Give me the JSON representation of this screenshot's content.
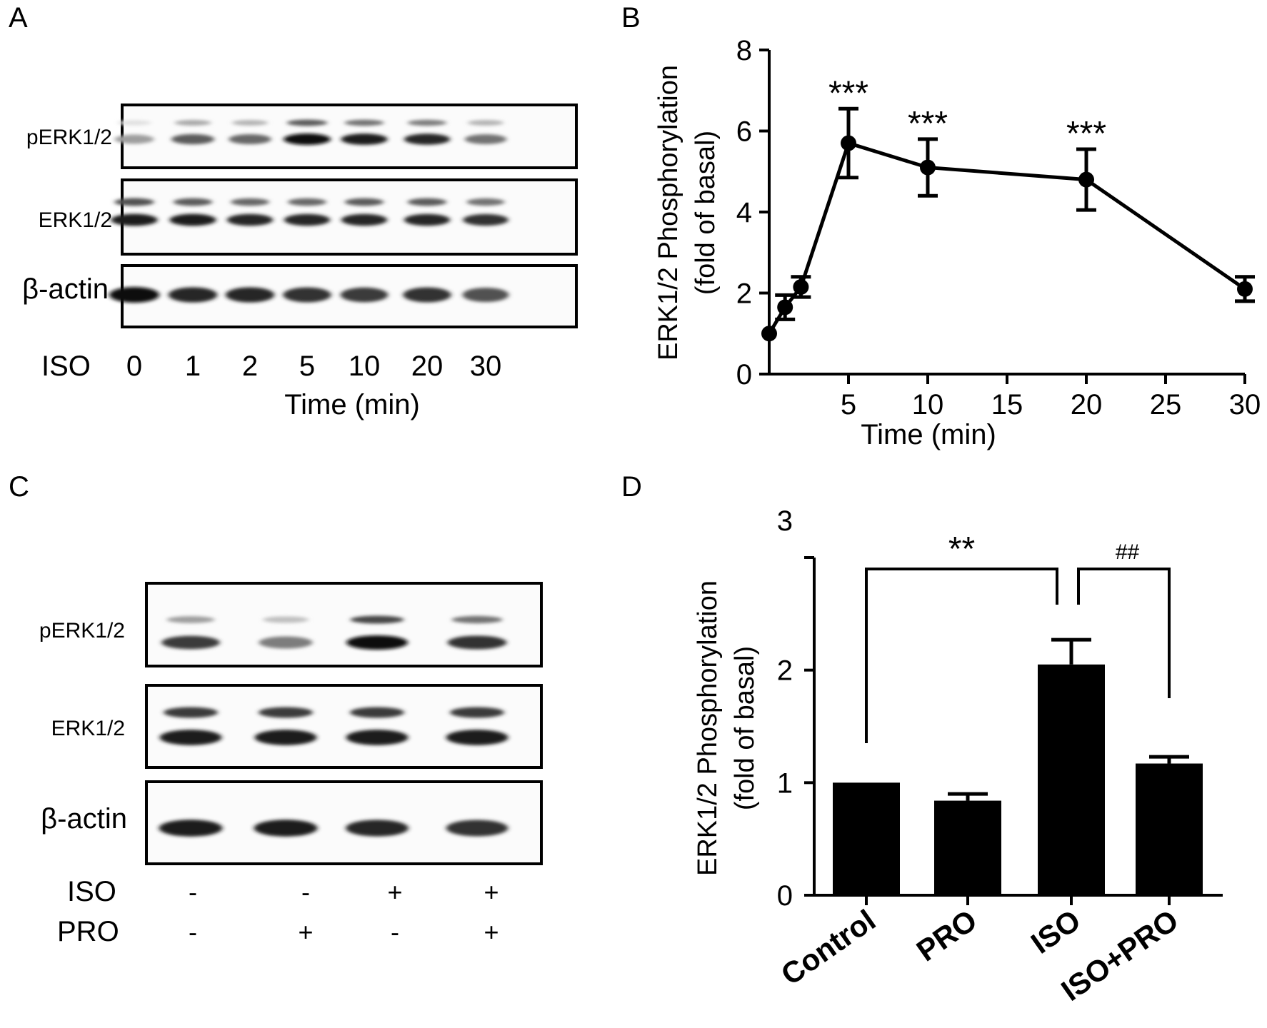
{
  "panels": {
    "A": "A",
    "B": "B",
    "C": "C",
    "D": "D"
  },
  "blot_a": {
    "row_labels": [
      "pERK1/2",
      "ERK1/2",
      "β-actin"
    ],
    "treatment_label": "ISO",
    "lanes": [
      "0",
      "1",
      "2",
      "5",
      "10",
      "20",
      "30"
    ],
    "xlabel": "Time (min)",
    "band_intensity": {
      "pERK_upper": [
        0.05,
        0.3,
        0.25,
        0.65,
        0.55,
        0.5,
        0.25
      ],
      "pERK_lower": [
        0.35,
        0.65,
        0.6,
        1.0,
        0.95,
        0.9,
        0.55
      ],
      "ERK_upper": [
        0.7,
        0.65,
        0.6,
        0.6,
        0.65,
        0.65,
        0.55
      ],
      "ERK_lower": [
        0.95,
        0.95,
        0.9,
        0.9,
        0.9,
        0.9,
        0.85
      ],
      "actin": [
        1.0,
        0.9,
        0.9,
        0.85,
        0.8,
        0.85,
        0.7
      ]
    }
  },
  "blot_c": {
    "row_labels": [
      "pERK1/2",
      "ERK1/2",
      "β-actin"
    ],
    "iso_label": "ISO",
    "pro_label": "PRO",
    "iso_marks": [
      "-",
      "-",
      "+",
      "+"
    ],
    "pro_marks": [
      "-",
      "+",
      "-",
      "+"
    ],
    "band_intensity": {
      "pERK_upper": [
        0.35,
        0.2,
        0.75,
        0.55
      ],
      "pERK_lower": [
        0.8,
        0.5,
        1.0,
        0.85
      ],
      "ERK_upper": [
        0.8,
        0.8,
        0.8,
        0.8
      ],
      "ERK_lower": [
        0.95,
        0.95,
        0.95,
        0.95
      ],
      "actin": [
        0.95,
        0.95,
        0.9,
        0.85
      ]
    }
  },
  "chart_data": [
    {
      "type": "line",
      "panel": "B",
      "x": [
        0,
        1,
        2,
        5,
        10,
        20,
        30
      ],
      "series": [
        {
          "values": [
            1.0,
            1.65,
            2.15,
            5.7,
            5.1,
            4.8,
            2.1
          ],
          "errors": [
            0.05,
            0.3,
            0.25,
            0.85,
            0.7,
            0.75,
            0.3
          ]
        }
      ],
      "significance": [
        {
          "x": 5,
          "label": "***"
        },
        {
          "x": 10,
          "label": "***"
        },
        {
          "x": 20,
          "label": "***"
        }
      ],
      "xlabel": "Time (min)",
      "ylabel_line1": "ERK1/2 Phosphorylation",
      "ylabel_line2": "(fold of basal)",
      "xlim": [
        0,
        30
      ],
      "ylim": [
        0,
        8
      ],
      "xticks": [
        "5",
        "10",
        "15",
        "20",
        "25",
        "30"
      ],
      "yticks": [
        "0",
        "2",
        "4",
        "6",
        "8"
      ],
      "grid": false
    },
    {
      "type": "bar",
      "panel": "D",
      "categories": [
        "Control",
        "PRO",
        "ISO",
        "ISO+PRO"
      ],
      "values": [
        1.0,
        0.84,
        2.05,
        1.17
      ],
      "errors": [
        0.0,
        0.06,
        0.22,
        0.06
      ],
      "brackets": [
        {
          "from": "Control",
          "to": "ISO",
          "label": "**"
        },
        {
          "from": "ISO",
          "to": "ISO+PRO",
          "label": "##"
        }
      ],
      "ylabel_line1": "ERK1/2 Phosphorylation",
      "ylabel_line2": "(fold of basal)",
      "ylim": [
        0,
        3
      ],
      "yticks": [
        "0",
        "1",
        "2",
        "3"
      ],
      "bar_color": "#000000",
      "grid": false
    }
  ]
}
